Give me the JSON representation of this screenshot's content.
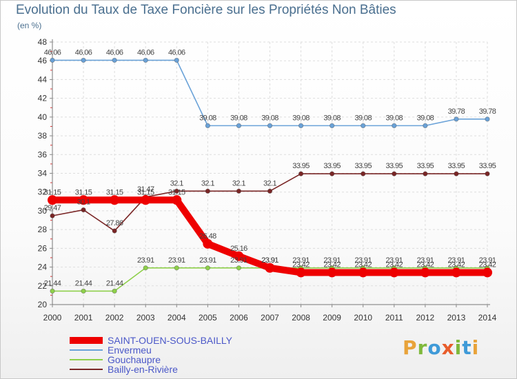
{
  "title": "Evolution du Taux de Taxe Foncière sur les Propriétés Non Bâties",
  "subtitle": "(en %)",
  "brand": {
    "text": "Proxiti",
    "colors": [
      "#e8a33a",
      "#7fb93c",
      "#3f9ad8",
      "#e85d2b",
      "#7fb93c",
      "#3f9ad8",
      "#e8a33a"
    ]
  },
  "chart_data": {
    "type": "line",
    "title": "Evolution du Taux de Taxe Foncière sur les Propriétés Non Bâties",
    "ylabel": "(en %)",
    "xlabel": "",
    "x": [
      2000,
      2001,
      2002,
      2003,
      2004,
      2005,
      2006,
      2007,
      2008,
      2009,
      2010,
      2011,
      2012,
      2013,
      2014
    ],
    "ylim": [
      20,
      48
    ],
    "yticks": [
      20,
      22,
      24,
      26,
      28,
      30,
      32,
      34,
      36,
      38,
      40,
      42,
      44,
      46,
      48
    ],
    "grid": true,
    "series": [
      {
        "name": "SAINT-OUEN-SOUS-BAILLY",
        "color": "#ee0000",
        "bold": true,
        "values": [
          31.15,
          31.15,
          31.15,
          31.15,
          31.15,
          26.48,
          25.16,
          23.91,
          23.42,
          23.42,
          23.42,
          23.42,
          23.42,
          23.42,
          23.42
        ],
        "labels": [
          "31.15",
          "31.15",
          "31.15",
          "31.15",
          "31.15",
          "26.48",
          "25.16",
          "23.91",
          "23.42",
          "23.42",
          "23.42",
          "23.42",
          "23.42",
          "23.42",
          "23.42"
        ]
      },
      {
        "name": "Envermeu",
        "color": "#6aa2d8",
        "values": [
          46.06,
          46.06,
          46.06,
          46.06,
          46.06,
          39.08,
          39.08,
          39.08,
          39.08,
          39.08,
          39.08,
          39.08,
          39.08,
          39.78,
          39.78
        ],
        "labels": [
          "46.06",
          "46.06",
          "46.06",
          "46.06",
          "46.06",
          "39.08",
          "39.08",
          "39.08",
          "39.08",
          "39.08",
          "39.08",
          "39.08",
          "39.08",
          "39.78",
          "39.78"
        ]
      },
      {
        "name": "Gouchaupre",
        "color": "#8ed04a",
        "values": [
          21.44,
          21.44,
          21.44,
          23.91,
          23.91,
          23.91,
          23.91,
          23.91,
          23.91,
          23.91,
          23.91,
          23.91,
          23.91,
          23.91,
          23.91
        ],
        "labels": [
          "21.44",
          "21.44",
          "21.44",
          "23.91",
          "23.91",
          "23.91",
          "23.91",
          "23.91",
          "23.91",
          "23.91",
          "23.91",
          "23.91",
          "23.91",
          "23.91",
          "23.91"
        ]
      },
      {
        "name": "Bailly-en-Rivière",
        "color": "#7a2626",
        "values": [
          29.47,
          30.1,
          27.86,
          31.47,
          32.1,
          32.1,
          32.1,
          32.1,
          33.95,
          33.95,
          33.95,
          33.95,
          33.95,
          33.95,
          33.95
        ],
        "labels": [
          "29.47",
          "30.1",
          "27.86",
          "31.47",
          "32.1",
          "32.1",
          "32.1",
          "32.1",
          "33.95",
          "33.95",
          "33.95",
          "33.95",
          "33.95",
          "33.95",
          "33.95"
        ]
      }
    ]
  }
}
